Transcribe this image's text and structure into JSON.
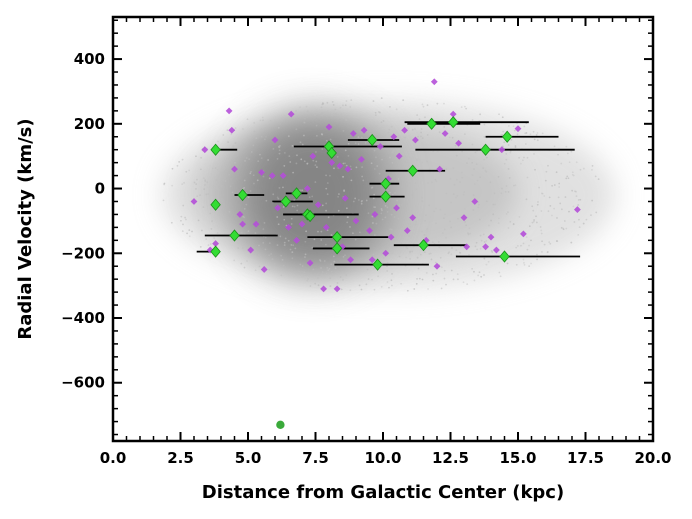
{
  "chart_data": {
    "type": "scatter",
    "title": "",
    "xlabel": "Distance from Galactic Center (kpc)",
    "ylabel": "Radial Velocity (km/s)",
    "xlim": [
      0,
      20
    ],
    "ylim": [
      -780,
      530
    ],
    "xticks": [
      "0.0",
      "2.5",
      "5.0",
      "7.5",
      "10.0",
      "12.5",
      "15.0",
      "17.5",
      "20.0"
    ],
    "xtick_values": [
      0,
      2.5,
      5,
      7.5,
      10,
      12.5,
      15,
      17.5,
      20
    ],
    "yticks": [
      "−600",
      "−400",
      "−200",
      "0",
      "200",
      "400"
    ],
    "ytick_values": [
      -600,
      -400,
      -200,
      0,
      200,
      400
    ],
    "grid": false,
    "legend": false,
    "colors": {
      "background_cloud": "#c8c8c8",
      "dense_core": "#707070",
      "violet_points": "#b44fd8",
      "green_diamonds": "#33dd33",
      "green_diamond_edge": "#1a8f1a",
      "error_bars": "#000000",
      "outlier": "#3aaa3a"
    },
    "series": [
      {
        "marker": "diamond-small",
        "color": "#b44fd8",
        "points": [
          [
            3.4,
            120
          ],
          [
            3.6,
            -190
          ],
          [
            3.0,
            -40
          ],
          [
            3.8,
            -170
          ],
          [
            4.3,
            240
          ],
          [
            4.5,
            60
          ],
          [
            4.7,
            -80
          ],
          [
            4.8,
            -110
          ],
          [
            5.1,
            -190
          ],
          [
            5.3,
            -110
          ],
          [
            5.6,
            -250
          ],
          [
            5.5,
            50
          ],
          [
            5.9,
            40
          ],
          [
            6.1,
            -60
          ],
          [
            6.3,
            40
          ],
          [
            6.5,
            -120
          ],
          [
            6.6,
            230
          ],
          [
            6.8,
            -160
          ],
          [
            7.0,
            -110
          ],
          [
            7.2,
            0
          ],
          [
            7.4,
            100
          ],
          [
            7.6,
            -50
          ],
          [
            7.8,
            -310
          ],
          [
            7.9,
            -120
          ],
          [
            8.1,
            80
          ],
          [
            8.3,
            -310
          ],
          [
            8.4,
            70
          ],
          [
            8.5,
            -180
          ],
          [
            8.6,
            -30
          ],
          [
            8.7,
            60
          ],
          [
            8.8,
            -220
          ],
          [
            8.9,
            170
          ],
          [
            9.0,
            -100
          ],
          [
            9.2,
            90
          ],
          [
            9.3,
            180
          ],
          [
            9.5,
            -130
          ],
          [
            9.7,
            -80
          ],
          [
            9.9,
            130
          ],
          [
            10.1,
            -200
          ],
          [
            10.2,
            30
          ],
          [
            10.3,
            -150
          ],
          [
            10.5,
            -60
          ],
          [
            10.6,
            100
          ],
          [
            10.8,
            180
          ],
          [
            10.9,
            -130
          ],
          [
            11.1,
            -90
          ],
          [
            11.2,
            150
          ],
          [
            11.6,
            -160
          ],
          [
            11.9,
            330
          ],
          [
            12.0,
            -240
          ],
          [
            12.3,
            170
          ],
          [
            12.6,
            230
          ],
          [
            12.8,
            140
          ],
          [
            13.0,
            -90
          ],
          [
            13.1,
            -180
          ],
          [
            13.4,
            -40
          ],
          [
            13.8,
            -180
          ],
          [
            14.0,
            -150
          ],
          [
            14.2,
            -190
          ],
          [
            14.4,
            120
          ],
          [
            15.0,
            185
          ],
          [
            15.2,
            -140
          ],
          [
            17.2,
            -65
          ],
          [
            4.4,
            180
          ],
          [
            6.0,
            150
          ],
          [
            7.3,
            -230
          ],
          [
            8.0,
            190
          ],
          [
            9.6,
            -220
          ],
          [
            10.4,
            160
          ],
          [
            12.1,
            60
          ]
        ]
      },
      {
        "marker": "diamond-large",
        "color": "#33dd33",
        "points": [
          {
            "x": 3.8,
            "y": 120,
            "xerr": [
              0.0,
              0.8
            ]
          },
          {
            "x": 3.8,
            "y": -50,
            "xerr": [
              0.0,
              0.0
            ]
          },
          {
            "x": 3.8,
            "y": -195,
            "xerr": [
              0.7,
              0.0
            ]
          },
          {
            "x": 4.5,
            "y": -145,
            "xerr": [
              1.1,
              1.6
            ]
          },
          {
            "x": 4.8,
            "y": -20,
            "xerr": [
              0.3,
              0.8
            ]
          },
          {
            "x": 6.4,
            "y": -40,
            "xerr": [
              0.5,
              1.0
            ]
          },
          {
            "x": 6.8,
            "y": -15,
            "xerr": [
              0.4,
              0.4
            ]
          },
          {
            "x": 7.2,
            "y": -80,
            "xerr": [
              0.9,
              1.9
            ]
          },
          {
            "x": 7.3,
            "y": -85,
            "xerr": [
              0.0,
              0.0
            ]
          },
          {
            "x": 8.0,
            "y": 130,
            "xerr": [
              1.3,
              2.7
            ]
          },
          {
            "x": 8.1,
            "y": 110,
            "xerr": [
              0.0,
              0.0
            ]
          },
          {
            "x": 8.3,
            "y": -150,
            "xerr": [
              1.1,
              1.9
            ]
          },
          {
            "x": 8.3,
            "y": -185,
            "xerr": [
              0.9,
              1.2
            ]
          },
          {
            "x": 9.6,
            "y": 150,
            "xerr": [
              0.9,
              1.0
            ]
          },
          {
            "x": 9.8,
            "y": -235,
            "xerr": [
              1.6,
              1.9
            ]
          },
          {
            "x": 10.1,
            "y": -25,
            "xerr": [
              0.6,
              0.7
            ]
          },
          {
            "x": 10.1,
            "y": 15,
            "xerr": [
              0.6,
              0.5
            ]
          },
          {
            "x": 11.1,
            "y": 55,
            "xerr": [
              1.0,
              1.2
            ]
          },
          {
            "x": 11.5,
            "y": -175,
            "xerr": [
              1.1,
              1.6
            ]
          },
          {
            "x": 11.8,
            "y": 200,
            "xerr": [
              0.9,
              1.8
            ]
          },
          {
            "x": 12.6,
            "y": 205,
            "xerr": [
              1.8,
              2.8
            ]
          },
          {
            "x": 13.8,
            "y": 120,
            "xerr": [
              2.6,
              3.3
            ]
          },
          {
            "x": 14.6,
            "y": 160,
            "xerr": [
              0.8,
              1.9
            ]
          },
          {
            "x": 14.5,
            "y": -210,
            "xerr": [
              1.8,
              2.8
            ]
          }
        ]
      },
      {
        "marker": "circle",
        "color": "#3aaa3a",
        "points": [
          [
            6.2,
            -730
          ]
        ]
      }
    ]
  }
}
